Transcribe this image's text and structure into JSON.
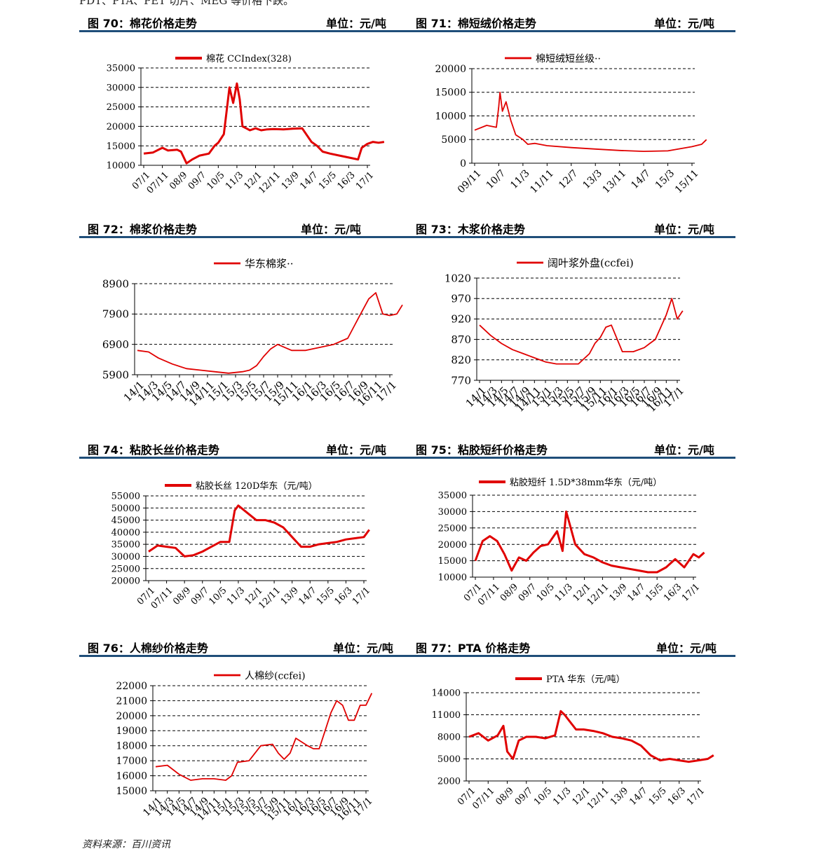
{
  "top_text": "PDT、PTA、PET 切片、MEG 等价格下跌。",
  "source": "资料来源：百川资讯",
  "accent": "#1f4e79",
  "series_color": "#e00000",
  "panels": [
    {
      "title": "图 70：棉花价格走势",
      "unit": "单位：元/吨"
    },
    {
      "title": "图 71：棉短绒价格走势",
      "unit": "单位：元/吨"
    },
    {
      "title": "图 72：棉浆价格走势",
      "unit": "单位：元/吨"
    },
    {
      "title": "图 73：木浆价格走势",
      "unit": "单位：元/吨"
    },
    {
      "title": "图 74：粘胶长丝价格走势",
      "unit": "单位：元/吨"
    },
    {
      "title": "图 75：粘胶短纤价格走势",
      "unit": "单位：元/吨"
    },
    {
      "title": "图 76：人棉纱价格走势",
      "unit": "单位：元/吨"
    },
    {
      "title": "图 77：PTA 价格走势",
      "unit": "单位：元/吨"
    }
  ],
  "chart_data": [
    {
      "id": "c70",
      "type": "line",
      "legend": "棉花 CCIndex(328)",
      "legend_pos": "top",
      "ylim": [
        10000,
        35000
      ],
      "yticks": [
        10000,
        15000,
        20000,
        25000,
        30000,
        35000
      ],
      "xticks": [
        "07/1",
        "07/11",
        "08/9",
        "09/7",
        "10/5",
        "11/3",
        "12/1",
        "12/11",
        "13/9",
        "14/7",
        "15/5",
        "16/3",
        "17/1"
      ],
      "x": [
        0,
        0.5,
        1,
        1.3,
        1.8,
        2,
        2.3,
        2.6,
        3,
        3.5,
        3.8,
        4,
        4.3,
        4.6,
        4.8,
        5,
        5.15,
        5.3,
        5.5,
        5.7,
        6,
        6.3,
        6.6,
        7,
        7.5,
        8,
        8.5,
        9,
        9.3,
        9.6,
        10,
        10.5,
        11,
        11.5,
        11.7,
        12,
        12.3,
        12.6,
        12.9
      ],
      "values": [
        13000,
        13300,
        14500,
        13800,
        14000,
        13500,
        10500,
        11500,
        12500,
        13000,
        15000,
        15800,
        18000,
        30000,
        26000,
        31000,
        27000,
        20000,
        19500,
        19000,
        19500,
        19000,
        19200,
        19300,
        19200,
        19400,
        19500,
        16000,
        15000,
        13500,
        13000,
        12500,
        12000,
        11500,
        14500,
        15500,
        16000,
        15800,
        16000
      ]
    },
    {
      "id": "c71",
      "type": "line",
      "legend": "棉短绒短丝级··",
      "legend_pos": "top",
      "ylim": [
        0,
        20000
      ],
      "yticks": [
        0,
        5000,
        10000,
        15000,
        20000
      ],
      "xticks": [
        "09/11",
        "10/7",
        "11/3",
        "11/11",
        "12/7",
        "13/3",
        "13/11",
        "14/7",
        "15/3",
        "15/11"
      ],
      "x": [
        0,
        0.5,
        0.9,
        1,
        1.05,
        1.15,
        1.3,
        1.5,
        1.7,
        2,
        2.2,
        2.5,
        3,
        4,
        5,
        6,
        7,
        8,
        9,
        9.4,
        9.6
      ],
      "values": [
        7000,
        8000,
        7600,
        12000,
        15000,
        11000,
        13000,
        9000,
        6000,
        5000,
        4000,
        4200,
        3700,
        3300,
        3000,
        2700,
        2500,
        2600,
        3500,
        4000,
        5000
      ]
    },
    {
      "id": "c72",
      "type": "line",
      "legend": "华东棉浆··",
      "legend_pos": "top",
      "ylim": [
        5900,
        8900
      ],
      "yticks": [
        5900,
        6900,
        7900,
        8900
      ],
      "xticks": [
        "14/1",
        "14/3",
        "14/5",
        "14/7",
        "14/9",
        "14/11",
        "15/1",
        "15/3",
        "15/5",
        "15/7",
        "15/9",
        "15/11",
        "16/1",
        "16/3",
        "16/5",
        "16/7",
        "16/9",
        "16/11",
        "17/1"
      ],
      "x": [
        0,
        0.8,
        1.5,
        2.5,
        3.5,
        4.5,
        5.5,
        6.5,
        7.5,
        8,
        8.5,
        9,
        9.5,
        10,
        11,
        12,
        13,
        14,
        15,
        15.8,
        16.5,
        17,
        17.5,
        18,
        18.5,
        18.9
      ],
      "values": [
        6700,
        6650,
        6450,
        6250,
        6100,
        6050,
        6000,
        5950,
        6000,
        6050,
        6200,
        6500,
        6750,
        6900,
        6700,
        6700,
        6800,
        6900,
        7100,
        7800,
        8400,
        8600,
        7900,
        7850,
        7900,
        8200
      ]
    },
    {
      "id": "c73",
      "type": "line",
      "legend": "阔叶浆外盘(ccfei)",
      "legend_pos": "top",
      "ylim": [
        770,
        1020
      ],
      "yticks": [
        770,
        820,
        870,
        920,
        970,
        1020
      ],
      "xticks": [
        "14/1",
        "14/3",
        "14/5",
        "14/7",
        "14/9",
        "14/11",
        "15/1",
        "15/3",
        "15/5",
        "15/7",
        "15/9",
        "15/11",
        "16/1",
        "16/3",
        "16/5",
        "16/7",
        "16/9",
        "16/11",
        "17/1"
      ],
      "x": [
        0,
        1,
        2,
        3,
        4,
        5,
        6,
        7,
        8,
        9,
        10,
        10.5,
        11,
        11.5,
        12,
        13,
        14,
        15,
        15.5,
        16,
        16.5,
        17,
        17.5,
        18,
        18.5
      ],
      "values": [
        905,
        880,
        860,
        845,
        835,
        825,
        815,
        810,
        810,
        810,
        835,
        860,
        875,
        900,
        905,
        840,
        840,
        850,
        860,
        870,
        900,
        930,
        970,
        920,
        940
      ]
    },
    {
      "id": "c74",
      "type": "line",
      "legend": "粘胶长丝 120D华东（元/吨）",
      "legend_pos": "top",
      "ylim": [
        20000,
        55000
      ],
      "yticks": [
        20000,
        25000,
        30000,
        35000,
        40000,
        45000,
        50000,
        55000
      ],
      "xticks": [
        "07/1",
        "07/11",
        "08/9",
        "09/7",
        "10/5",
        "11/3",
        "12/1",
        "12/11",
        "13/9",
        "14/7",
        "15/5",
        "16/3",
        "17/1"
      ],
      "x": [
        0,
        0.5,
        1,
        1.5,
        2,
        2.5,
        3,
        3.5,
        4,
        4.5,
        4.8,
        5,
        5.5,
        6,
        6.5,
        7,
        7.5,
        8,
        8.5,
        9,
        9.5,
        10,
        10.5,
        11,
        11.5,
        12,
        12.3
      ],
      "values": [
        32000,
        34500,
        34000,
        33500,
        30000,
        30500,
        32000,
        34000,
        36000,
        36000,
        49000,
        51000,
        48000,
        45000,
        45000,
        44000,
        42000,
        38000,
        34000,
        34000,
        35000,
        35500,
        36000,
        37000,
        37500,
        38000,
        41000
      ]
    },
    {
      "id": "c75",
      "type": "line",
      "legend": "粘胶短纤 1.5D*38mm华东（元/吨）",
      "legend_pos": "top",
      "ylim": [
        10000,
        35000
      ],
      "yticks": [
        10000,
        15000,
        20000,
        25000,
        30000,
        35000
      ],
      "xticks": [
        "07/1",
        "07/11",
        "08/9",
        "09/7",
        "10/5",
        "11/3",
        "12/1",
        "12/11",
        "13/9",
        "14/7",
        "15/5",
        "16/3",
        "17/1"
      ],
      "x": [
        0,
        0.4,
        0.8,
        1.2,
        1.6,
        2,
        2.4,
        2.8,
        3.2,
        3.6,
        4,
        4.5,
        4.8,
        5,
        5.2,
        5.5,
        6,
        6.5,
        7,
        7.5,
        8,
        8.5,
        9,
        9.5,
        10,
        10.5,
        11,
        11.5,
        12,
        12.3,
        12.6
      ],
      "values": [
        15000,
        21000,
        22500,
        21000,
        17000,
        12000,
        16000,
        15000,
        17500,
        19500,
        20000,
        24000,
        18000,
        30000,
        26000,
        20000,
        17000,
        16000,
        14500,
        13500,
        13000,
        12500,
        12000,
        11500,
        11500,
        13000,
        15500,
        13000,
        17000,
        16000,
        17500
      ]
    },
    {
      "id": "c76",
      "type": "line",
      "legend": "人棉纱(ccfei)",
      "legend_pos": "top",
      "ylim": [
        15000,
        22000
      ],
      "yticks": [
        15000,
        16000,
        17000,
        18000,
        19000,
        20000,
        21000,
        22000
      ],
      "xticks": [
        "14/1",
        "14/3",
        "14/5",
        "14/7",
        "14/9",
        "14/11",
        "15/1",
        "15/3",
        "15/5",
        "15/7",
        "15/9",
        "15/11",
        "16/1",
        "16/3",
        "16/5",
        "16/7",
        "16/9",
        "16/11",
        "17/1"
      ],
      "x": [
        0,
        1,
        2,
        3,
        4,
        5,
        6,
        6.5,
        7,
        8,
        9,
        10,
        10.5,
        11,
        11.5,
        12,
        13,
        13.5,
        14,
        14.5,
        15,
        15.5,
        16,
        16.5,
        17,
        17.5,
        18,
        18.5
      ],
      "values": [
        16600,
        16700,
        16100,
        15700,
        15800,
        15800,
        15700,
        16000,
        16900,
        17000,
        18000,
        18100,
        17500,
        17100,
        17500,
        18500,
        18000,
        17800,
        17800,
        19000,
        20200,
        21000,
        20700,
        19700,
        19700,
        20700,
        20700,
        21500
      ]
    },
    {
      "id": "c77",
      "type": "line",
      "legend": "PTA 华东（元/吨）",
      "legend_pos": "top",
      "ylim": [
        2000,
        14000
      ],
      "yticks": [
        2000,
        5000,
        8000,
        11000,
        14000
      ],
      "xticks": [
        "07/1",
        "07/11",
        "08/9",
        "09/7",
        "10/5",
        "11/3",
        "12/1",
        "12/11",
        "13/9",
        "14/7",
        "15/5",
        "16/3",
        "17/1"
      ],
      "x": [
        0,
        0.5,
        1,
        1.5,
        1.8,
        2,
        2.3,
        2.6,
        3,
        3.5,
        4,
        4.5,
        4.8,
        5,
        5.3,
        5.6,
        6,
        6.5,
        7,
        7.5,
        8,
        8.5,
        9,
        9.5,
        10,
        10.5,
        11,
        11.5,
        12,
        12.5,
        12.8
      ],
      "values": [
        8000,
        8500,
        7500,
        8200,
        9500,
        6000,
        5000,
        7500,
        8000,
        8000,
        7800,
        8200,
        11500,
        11000,
        10000,
        9000,
        9000,
        8800,
        8500,
        8000,
        7800,
        7500,
        6800,
        5500,
        4800,
        5000,
        4800,
        4600,
        4800,
        5000,
        5500
      ]
    }
  ]
}
